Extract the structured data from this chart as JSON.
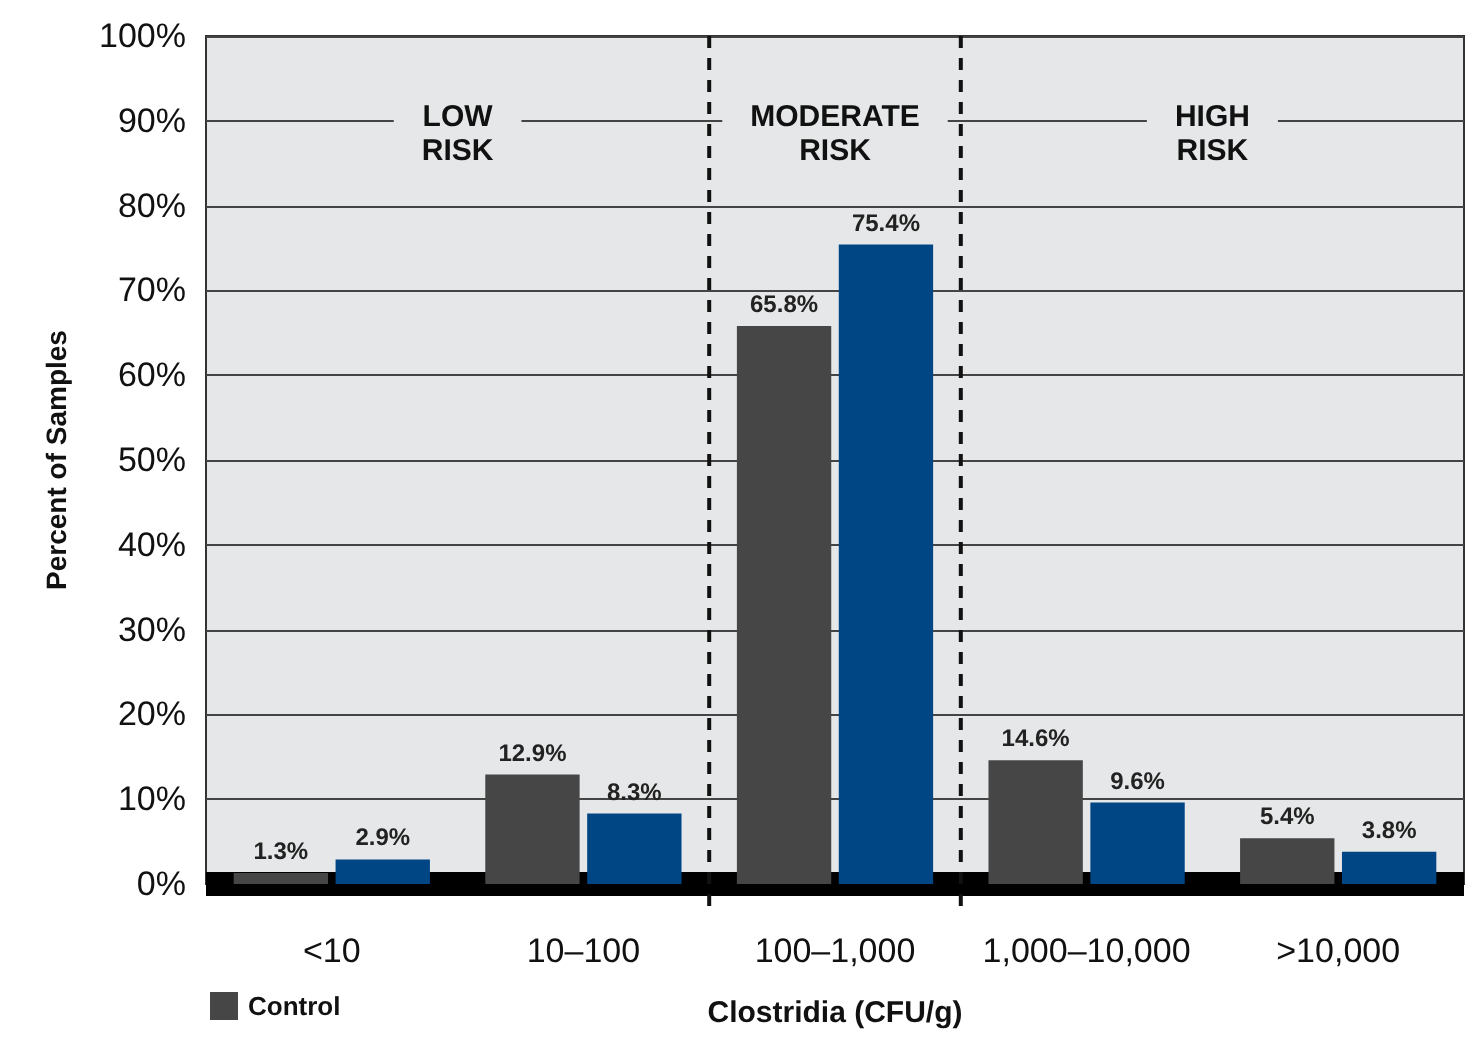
{
  "chart_data": {
    "type": "bar",
    "xlabel": "Clostridia (CFU/g)",
    "ylabel": "Percent of Samples",
    "categories": [
      "<10",
      "10–100",
      "100–1,000",
      "1,000–10,000",
      ">10,000"
    ],
    "series": [
      {
        "name": "Control",
        "color": "#464646",
        "values": [
          1.3,
          12.9,
          65.8,
          14.6,
          5.4
        ]
      },
      {
        "color": "#004685",
        "values": [
          2.9,
          8.3,
          75.4,
          9.6,
          3.8
        ]
      }
    ],
    "value_labels": [
      [
        "1.3%",
        "12.9%",
        "65.8%",
        "14.6%",
        "5.4%"
      ],
      [
        "2.9%",
        "8.3%",
        "75.4%",
        "9.6%",
        "3.8%"
      ]
    ],
    "ylim": [
      0,
      100
    ],
    "yticks": [
      {
        "value": 0,
        "label": "0%"
      },
      {
        "value": 10,
        "label": "10%"
      },
      {
        "value": 20,
        "label": "20%"
      },
      {
        "value": 30,
        "label": "30%"
      },
      {
        "value": 40,
        "label": "40%"
      },
      {
        "value": 50,
        "label": "50%"
      },
      {
        "value": 60,
        "label": "60%"
      },
      {
        "value": 70,
        "label": "70%"
      },
      {
        "value": 80,
        "label": "80%"
      },
      {
        "value": 90,
        "label": "90%"
      },
      {
        "value": 100,
        "label": "100%"
      }
    ],
    "grid": "y",
    "legend": "bottom left",
    "bands": [
      {
        "axis": "x",
        "from": "<10",
        "to": "10–100",
        "label": "LOW RISK"
      },
      {
        "axis": "x",
        "from": "100–1,000",
        "to": "100–1,000",
        "label": "MODERATE RISK"
      },
      {
        "axis": "x",
        "from": "1,000–10,000",
        "to": ">10,000",
        "label": "HIGH RISK"
      }
    ]
  }
}
